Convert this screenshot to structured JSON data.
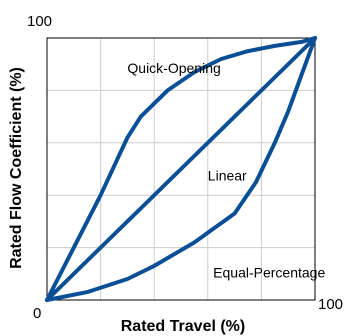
{
  "chart_data": {
    "type": "line",
    "xlabel": "Rated Travel (%)",
    "ylabel": "Rated Flow Coefficient (%)",
    "xlim": [
      0,
      100
    ],
    "ylim": [
      0,
      100
    ],
    "x_tick_labels": {
      "min": "0",
      "max": "100"
    },
    "y_tick_labels": {
      "max": "100"
    },
    "grid": true,
    "grid_lines": 5,
    "line_color": "#0a4f95",
    "grid_color": "#cccccc",
    "series": [
      {
        "name": "Quick-Opening",
        "x": [
          0,
          10,
          20,
          30,
          35,
          45,
          55,
          65,
          75,
          85,
          95,
          100
        ],
        "y": [
          0,
          20,
          40,
          62,
          70,
          80,
          87,
          92,
          95,
          97,
          98.5,
          100
        ]
      },
      {
        "name": "Linear",
        "x": [
          0,
          25,
          50,
          75,
          100
        ],
        "y": [
          0,
          25,
          50,
          75,
          100
        ]
      },
      {
        "name": "Equal-Percentage",
        "x": [
          0,
          15,
          30,
          40,
          55,
          70,
          78,
          85,
          90,
          95,
          100
        ],
        "y": [
          0,
          3,
          8,
          13,
          22,
          33,
          45,
          60,
          72,
          86,
          100
        ]
      }
    ],
    "annotations": [
      {
        "text": "Quick-Opening",
        "x": 30,
        "y": 88
      },
      {
        "text": "Linear",
        "x": 60,
        "y": 47
      },
      {
        "text": "Equal-Percentage",
        "x": 62,
        "y": 10
      }
    ]
  }
}
